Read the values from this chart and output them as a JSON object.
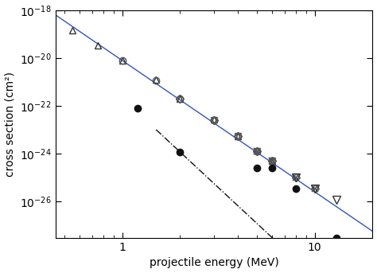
{
  "title": "",
  "xlabel": "projectile energy (MeV)",
  "ylabel": "cross section (cm²)",
  "xlim": [
    0.45,
    20
  ],
  "ylim": [
    3e-28,
    1e-18
  ],
  "background_color": "#ffffff",
  "solid_line": {
    "color": "#3355bb",
    "anchor_x": 0.55,
    "anchor_y": 2.2e-19,
    "slope_log": -5.5
  },
  "dash_dot_line": {
    "color": "#111111",
    "anchor_x": 2.0,
    "anchor_y": 1.2e-24,
    "slope_log": -7.5
  },
  "triangles_up": {
    "x": [
      0.55,
      0.75,
      1.0,
      1.5,
      2.0,
      3.0,
      4.0,
      5.0,
      6.0
    ],
    "y": [
      1.5e-19,
      3.5e-20,
      8e-21,
      1.3e-21,
      2e-22,
      2.8e-23,
      5.5e-24,
      1.4e-24,
      5e-25
    ],
    "marker": "^",
    "facecolor": "none",
    "edgecolor": "#333333",
    "markersize": 6
  },
  "circles_open": {
    "x": [
      1.0,
      1.5,
      2.0,
      3.0,
      4.0,
      5.0,
      6.0
    ],
    "y": [
      8e-21,
      1.2e-21,
      2e-22,
      2.6e-23,
      5.5e-24,
      1.3e-24,
      5e-25
    ],
    "marker": "o",
    "facecolor": "none",
    "edgecolor": "#555555",
    "markersize": 6
  },
  "diamonds_open": {
    "x": [
      2.0,
      3.0,
      4.0,
      5.0,
      6.0,
      8.0,
      10.0
    ],
    "y": [
      2e-22,
      2.5e-23,
      5.5e-24,
      1.3e-24,
      5e-25,
      1e-25,
      3.5e-26
    ],
    "marker": "D",
    "facecolor": "none",
    "edgecolor": "#555555",
    "markersize": 5
  },
  "triangles_down_open": {
    "x": [
      3.0,
      4.0,
      5.0,
      6.0
    ],
    "y": [
      2.5e-23,
      5.5e-24,
      1.3e-24,
      5e-25
    ],
    "marker": "v",
    "facecolor": "none",
    "edgecolor": "#555555",
    "markersize": 6
  },
  "crosses": {
    "x": [
      5.0,
      6.0,
      8.0,
      10.0
    ],
    "y": [
      1.3e-24,
      5e-25,
      1e-25,
      3.5e-26
    ],
    "marker": "x",
    "color": "#555555",
    "markersize": 6
  },
  "triangles_down_large": {
    "x": [
      8.0,
      10.0,
      13.0
    ],
    "y": [
      1e-25,
      3.5e-26,
      1.2e-26
    ],
    "marker": "v",
    "facecolor": "none",
    "edgecolor": "#333333",
    "markersize": 7
  },
  "filled_circles": {
    "x": [
      1.2,
      2.0,
      5.0,
      6.0,
      8.0,
      13.0
    ],
    "y": [
      8e-23,
      1.2e-24,
      2.5e-25,
      2.5e-25,
      3.5e-26,
      3e-28
    ],
    "marker": "o",
    "color": "#111111",
    "markersize": 6
  }
}
